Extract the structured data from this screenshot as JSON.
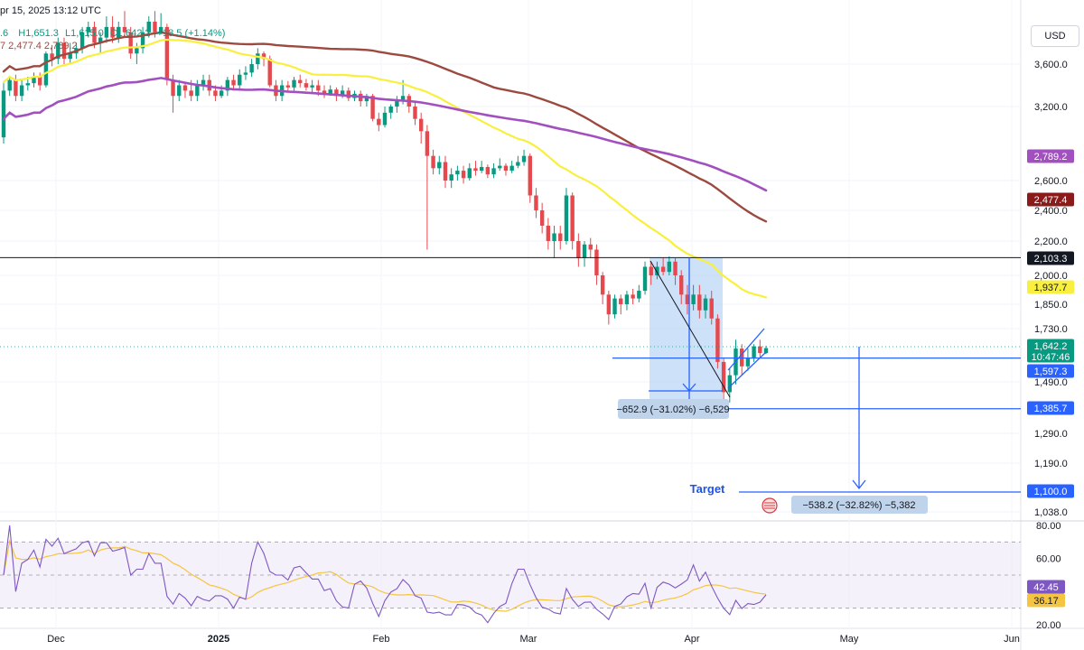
{
  "header": {
    "datetime": "pr 15, 2025 13:12 UTC",
    "ohlc_o": ".6",
    "ohlc_h": "H1,651.3",
    "ohlc_l": "L1,615.0",
    "ohlc_c": "C1,642.2",
    "change": "+18.5 (+1.14%)",
    "ma_line": "7  2,477.4  2,789.2"
  },
  "currency_button": "USD",
  "colors": {
    "up": "#089981",
    "down": "#e5484d",
    "ma_fast": "#f9ef3f",
    "ma_mid": "#9c4a3f",
    "ma_slow": "#a24fbf",
    "rsi": "#7e57c2",
    "rsi_ma": "#f5c542",
    "measure_fill": "#bcd7f5",
    "blue": "#2962ff"
  },
  "chart_data": {
    "type": "candlestick",
    "price_axis_ticks": [
      "3,600.0",
      "3,200.0",
      "2,600.0",
      "2,400.0",
      "2,200.0",
      "2,000.0",
      "1,850.0",
      "1,730.0",
      "1,490.0",
      "1,290.0",
      "1,190.0",
      "1,038.0"
    ],
    "price_axis_ticks_numeric": [
      3600,
      3200,
      2600,
      2400,
      2200,
      2000,
      1850,
      1730,
      1490,
      1290,
      1190,
      1038
    ],
    "time_axis_labels": [
      "Dec",
      "2025",
      "Feb",
      "Mar",
      "Apr",
      "May",
      "Jun"
    ],
    "price_tags": [
      {
        "label": "2,789.2",
        "color": "#a24fbf"
      },
      {
        "label": "2,477.4",
        "color": "#8b1a1a"
      },
      {
        "label": "2,103.3",
        "color": "#131722"
      },
      {
        "label": "1,937.7",
        "color": "#f9ef3f",
        "text": "#131722"
      },
      {
        "label": "1,642.2",
        "sub": "10:47:46",
        "color": "#089981"
      },
      {
        "label": "1,597.3",
        "color": "#2962ff"
      },
      {
        "label": "1,385.7",
        "color": "#2962ff"
      },
      {
        "label": "1,100.0",
        "color": "#2962ff"
      }
    ],
    "horizontal_levels": [
      2103.3,
      1597.3,
      1385.7,
      1100.0
    ],
    "measure_label_1": "−652.9 (−31.02%) −6,529",
    "measure_label_2": "−538.2 (−32.82%) −5,382",
    "target_label": "Target",
    "candles": [
      [
        2950,
        3350,
        3420,
        2900
      ],
      [
        3350,
        3450,
        3480,
        3300
      ],
      [
        3450,
        3300,
        3500,
        3250
      ],
      [
        3300,
        3400,
        3450,
        3250
      ],
      [
        3400,
        3420,
        3480,
        3350
      ],
      [
        3420,
        3480,
        3520,
        3380
      ],
      [
        3480,
        3400,
        3520,
        3350
      ],
      [
        3400,
        3700,
        3720,
        3380
      ],
      [
        3700,
        3650,
        3780,
        3580
      ],
      [
        3650,
        3800,
        3850,
        3600
      ],
      [
        3800,
        3650,
        3850,
        3600
      ],
      [
        3650,
        3700,
        3800,
        3600
      ],
      [
        3700,
        3750,
        3800,
        3650
      ],
      [
        3750,
        3900,
        3950,
        3700
      ],
      [
        3900,
        3950,
        4000,
        3850
      ],
      [
        3950,
        3800,
        4000,
        3750
      ],
      [
        3800,
        3850,
        3900,
        3700
      ],
      [
        3850,
        3950,
        4050,
        3800
      ],
      [
        3950,
        3850,
        4050,
        3800
      ],
      [
        3850,
        3950,
        4000,
        3800
      ],
      [
        3950,
        3900,
        4100,
        3850
      ],
      [
        3900,
        3700,
        3950,
        3650
      ],
      [
        3700,
        3750,
        3800,
        3600
      ],
      [
        3750,
        3900,
        3950,
        3700
      ],
      [
        3900,
        4000,
        4050,
        3850
      ],
      [
        4000,
        3900,
        4100,
        3850
      ],
      [
        3900,
        3950,
        4080,
        3880
      ],
      [
        3950,
        3450,
        3980,
        3400
      ],
      [
        3450,
        3300,
        3500,
        3150
      ],
      [
        3300,
        3400,
        3450,
        3250
      ],
      [
        3400,
        3350,
        3420,
        3280
      ],
      [
        3350,
        3300,
        3450,
        3250
      ],
      [
        3300,
        3400,
        3450,
        3250
      ],
      [
        3400,
        3450,
        3500,
        3350
      ],
      [
        3450,
        3350,
        3500,
        3300
      ],
      [
        3350,
        3300,
        3400,
        3250
      ],
      [
        3300,
        3350,
        3400,
        3280
      ],
      [
        3350,
        3450,
        3480,
        3300
      ],
      [
        3450,
        3400,
        3500,
        3350
      ],
      [
        3400,
        3500,
        3550,
        3350
      ],
      [
        3500,
        3520,
        3580,
        3450
      ],
      [
        3520,
        3600,
        3650,
        3480
      ],
      [
        3600,
        3700,
        3750,
        3550
      ],
      [
        3700,
        3650,
        3720,
        3580
      ],
      [
        3650,
        3400,
        3680,
        3380
      ],
      [
        3400,
        3300,
        3450,
        3250
      ],
      [
        3300,
        3400,
        3450,
        3250
      ],
      [
        3400,
        3380,
        3440,
        3330
      ],
      [
        3380,
        3450,
        3480,
        3350
      ],
      [
        3450,
        3420,
        3500,
        3380
      ],
      [
        3420,
        3380,
        3460,
        3350
      ],
      [
        3380,
        3400,
        3450,
        3330
      ],
      [
        3400,
        3350,
        3450,
        3300
      ],
      [
        3350,
        3320,
        3400,
        3280
      ],
      [
        3320,
        3360,
        3400,
        3300
      ],
      [
        3360,
        3300,
        3380,
        3250
      ],
      [
        3300,
        3350,
        3400,
        3280
      ],
      [
        3350,
        3280,
        3380,
        3250
      ],
      [
        3280,
        3320,
        3350,
        3250
      ],
      [
        3320,
        3250,
        3350,
        3200
      ],
      [
        3250,
        3300,
        3320,
        3200
      ],
      [
        3300,
        3100,
        3320,
        3080
      ],
      [
        3100,
        3050,
        3150,
        3000
      ],
      [
        3050,
        3150,
        3200,
        3030
      ],
      [
        3150,
        3200,
        3220,
        3100
      ],
      [
        3200,
        3250,
        3300,
        3150
      ],
      [
        3250,
        3300,
        3450,
        3220
      ],
      [
        3300,
        3200,
        3320,
        3150
      ],
      [
        3200,
        3100,
        3250,
        3050
      ],
      [
        3100,
        3000,
        3150,
        2900
      ],
      [
        3000,
        2800,
        3050,
        2150
      ],
      [
        2800,
        2700,
        2850,
        2650
      ],
      [
        2700,
        2750,
        2800,
        2650
      ],
      [
        2750,
        2600,
        2800,
        2550
      ],
      [
        2600,
        2650,
        2700,
        2550
      ],
      [
        2650,
        2680,
        2720,
        2600
      ],
      [
        2680,
        2620,
        2720,
        2580
      ],
      [
        2620,
        2700,
        2740,
        2600
      ],
      [
        2700,
        2680,
        2760,
        2640
      ],
      [
        2680,
        2710,
        2760,
        2660
      ],
      [
        2710,
        2650,
        2730,
        2620
      ],
      [
        2650,
        2700,
        2740,
        2620
      ],
      [
        2700,
        2720,
        2780,
        2680
      ],
      [
        2720,
        2680,
        2740,
        2640
      ],
      [
        2680,
        2720,
        2760,
        2660
      ],
      [
        2720,
        2750,
        2800,
        2700
      ],
      [
        2750,
        2800,
        2850,
        2720
      ],
      [
        2800,
        2500,
        2820,
        2450
      ],
      [
        2500,
        2400,
        2550,
        2350
      ],
      [
        2400,
        2300,
        2450,
        2250
      ],
      [
        2300,
        2200,
        2350,
        2150
      ],
      [
        2200,
        2250,
        2300,
        2100
      ],
      [
        2250,
        2200,
        2300,
        2150
      ],
      [
        2200,
        2500,
        2550,
        2180
      ],
      [
        2500,
        2200,
        2520,
        2150
      ],
      [
        2200,
        2100,
        2250,
        2050
      ],
      [
        2100,
        2180,
        2200,
        2050
      ],
      [
        2180,
        2150,
        2220,
        2100
      ],
      [
        2150,
        2000,
        2180,
        1950
      ],
      [
        2000,
        1900,
        2020,
        1850
      ],
      [
        1900,
        1800,
        1920,
        1750
      ],
      [
        1800,
        1880,
        1900,
        1780
      ],
      [
        1880,
        1850,
        1900,
        1800
      ],
      [
        1850,
        1900,
        1920,
        1820
      ],
      [
        1900,
        1880,
        1930,
        1850
      ],
      [
        1880,
        1920,
        1950,
        1860
      ],
      [
        1920,
        2050,
        2080,
        1900
      ],
      [
        2050,
        2000,
        2080,
        1950
      ],
      [
        2000,
        2050,
        2080,
        1980
      ],
      [
        2050,
        2020,
        2100,
        2000
      ],
      [
        2020,
        2080,
        2110,
        2000
      ],
      [
        2080,
        2000,
        2100,
        1950
      ],
      [
        2000,
        1900,
        2030,
        1850
      ],
      [
        1900,
        1850,
        1950,
        1800
      ],
      [
        1850,
        1900,
        1950,
        1820
      ],
      [
        1900,
        1820,
        1950,
        1780
      ],
      [
        1820,
        1880,
        1900,
        1780
      ],
      [
        1880,
        1780,
        1920,
        1750
      ],
      [
        1780,
        1580,
        1800,
        1550
      ],
      [
        1580,
        1450,
        1600,
        1400
      ],
      [
        1450,
        1520,
        1550,
        1410
      ],
      [
        1520,
        1640,
        1680,
        1480
      ],
      [
        1640,
        1560,
        1660,
        1520
      ],
      [
        1560,
        1600,
        1640,
        1540
      ],
      [
        1600,
        1650,
        1660,
        1580
      ],
      [
        1650,
        1620,
        1680,
        1600
      ],
      [
        1620,
        1642,
        1652,
        1615
      ]
    ],
    "rsi_axis_ticks": [
      "80.00",
      "60.00",
      "20.00"
    ],
    "rsi_axis_ticks_numeric": [
      80,
      60,
      20
    ],
    "rsi_tags": [
      {
        "label": "42.45",
        "color": "#7e57c2"
      },
      {
        "label": "36.17",
        "color": "#f5c542",
        "text": "#131722"
      }
    ],
    "rsi_levels": [
      70,
      50,
      30
    ],
    "rsi_last": 42.45,
    "rsi_ma_last": 36.17
  }
}
